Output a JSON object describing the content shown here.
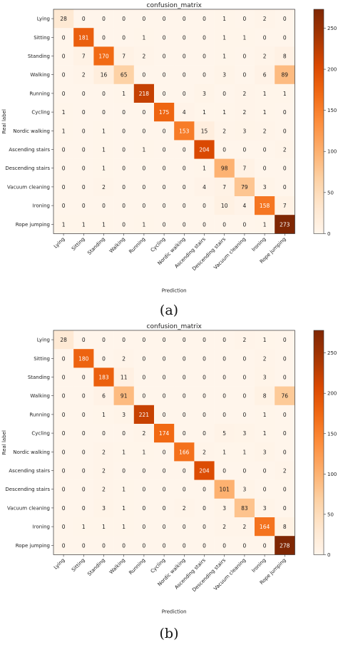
{
  "chart_data": [
    {
      "type": "heatmap",
      "title": "confusion_matrix",
      "xlabel": "Prediction",
      "ylabel": "Real label",
      "caption": "(a)",
      "labels": [
        "Lying",
        "Sitting",
        "Standing",
        "Walking",
        "Running",
        "Cycling",
        "Nordic walking",
        "Ascending stairs",
        "Descending stairs",
        "Vacuum cleaning",
        "Ironing",
        "Rope jumping"
      ],
      "matrix": [
        [
          28,
          0,
          0,
          0,
          0,
          0,
          0,
          0,
          1,
          0,
          2,
          0
        ],
        [
          0,
          181,
          0,
          0,
          1,
          0,
          0,
          0,
          1,
          1,
          0,
          0
        ],
        [
          0,
          7,
          170,
          7,
          2,
          0,
          0,
          0,
          1,
          0,
          2,
          8
        ],
        [
          0,
          2,
          16,
          65,
          0,
          0,
          0,
          0,
          3,
          0,
          6,
          89
        ],
        [
          0,
          0,
          0,
          1,
          218,
          0,
          0,
          3,
          0,
          2,
          1,
          1
        ],
        [
          1,
          0,
          0,
          0,
          0,
          175,
          4,
          1,
          1,
          2,
          1,
          0
        ],
        [
          1,
          0,
          1,
          0,
          0,
          0,
          153,
          15,
          2,
          3,
          2,
          0
        ],
        [
          0,
          0,
          1,
          0,
          1,
          0,
          0,
          204,
          0,
          0,
          0,
          2
        ],
        [
          0,
          0,
          1,
          0,
          0,
          0,
          0,
          1,
          98,
          7,
          0,
          0
        ],
        [
          0,
          0,
          2,
          0,
          0,
          0,
          0,
          4,
          7,
          79,
          3,
          0
        ],
        [
          0,
          0,
          0,
          0,
          0,
          0,
          0,
          0,
          10,
          4,
          158,
          7
        ],
        [
          1,
          1,
          1,
          0,
          1,
          0,
          0,
          0,
          0,
          0,
          1,
          273
        ]
      ],
      "colorbar": {
        "range": [
          0,
          273
        ],
        "ticks": [
          0,
          50,
          100,
          150,
          200,
          250
        ]
      },
      "colors": {
        "low": "#fff5eb",
        "high": "#7f2704"
      }
    },
    {
      "type": "heatmap",
      "title": "confusion_matrix",
      "xlabel": "Prediction",
      "ylabel": "Real label",
      "caption": "(b)",
      "labels": [
        "Lying",
        "Sitting",
        "Standing",
        "Walking",
        "Running",
        "Cycling",
        "Nordic walking",
        "Ascending stairs",
        "Descending stairs",
        "Vacuum cleaning",
        "Ironing",
        "Rope jumping"
      ],
      "matrix": [
        [
          28,
          0,
          0,
          0,
          0,
          0,
          0,
          0,
          0,
          2,
          1,
          0
        ],
        [
          0,
          180,
          0,
          2,
          0,
          0,
          0,
          0,
          0,
          0,
          2,
          0
        ],
        [
          0,
          0,
          183,
          11,
          0,
          0,
          0,
          0,
          0,
          0,
          3,
          0
        ],
        [
          0,
          0,
          6,
          91,
          0,
          0,
          0,
          0,
          0,
          0,
          8,
          76
        ],
        [
          0,
          0,
          1,
          3,
          221,
          0,
          0,
          0,
          0,
          0,
          1,
          0
        ],
        [
          0,
          0,
          0,
          0,
          2,
          174,
          0,
          0,
          5,
          3,
          1,
          0
        ],
        [
          0,
          0,
          2,
          1,
          1,
          0,
          166,
          2,
          1,
          1,
          3,
          0
        ],
        [
          0,
          0,
          2,
          0,
          0,
          0,
          0,
          204,
          0,
          0,
          0,
          2
        ],
        [
          0,
          0,
          2,
          1,
          0,
          0,
          0,
          0,
          101,
          3,
          0,
          0
        ],
        [
          0,
          0,
          3,
          1,
          0,
          0,
          2,
          0,
          3,
          83,
          3,
          0
        ],
        [
          0,
          1,
          1,
          1,
          0,
          0,
          0,
          0,
          2,
          2,
          164,
          8
        ],
        [
          0,
          0,
          0,
          0,
          0,
          0,
          0,
          0,
          0,
          0,
          0,
          278
        ]
      ],
      "colorbar": {
        "range": [
          0,
          278
        ],
        "ticks": [
          0,
          50,
          100,
          150,
          200,
          250
        ]
      },
      "colors": {
        "low": "#fff5eb",
        "high": "#7f2704"
      }
    }
  ]
}
